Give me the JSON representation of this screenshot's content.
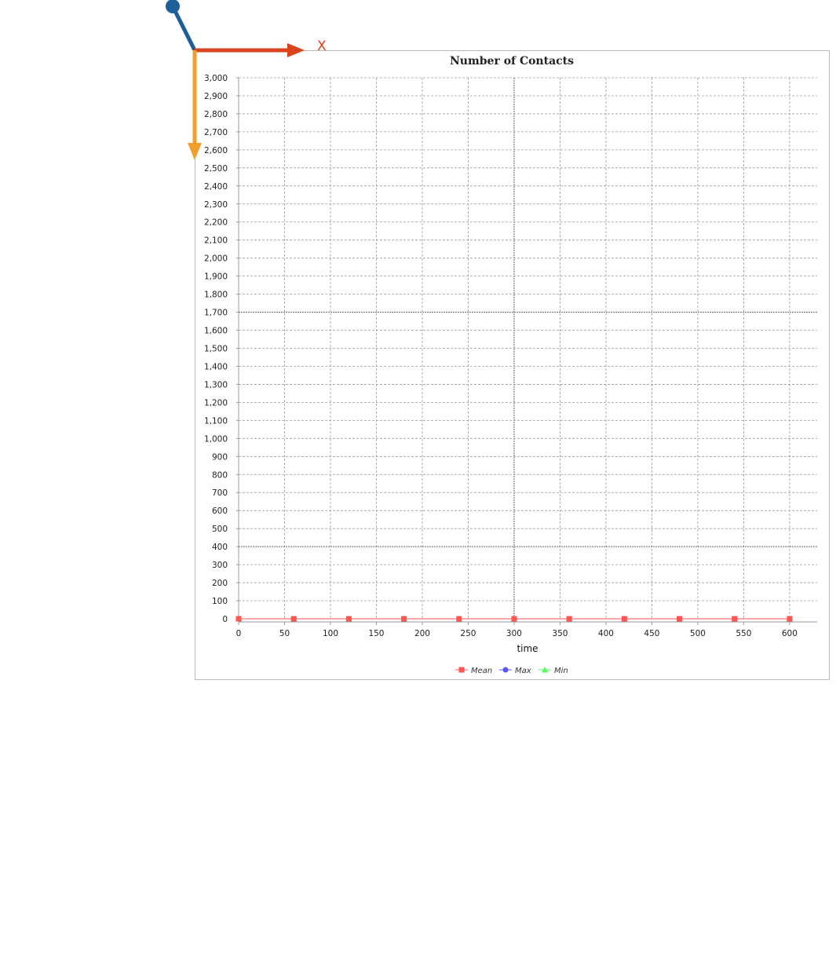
{
  "gizmo": {
    "x_label": "X",
    "x_color": "#d9441d",
    "y_color": "#f0a02a",
    "z_color": "#1f5f99"
  },
  "chart_data": {
    "type": "line",
    "title": "Number of Contacts",
    "xlabel": "time",
    "ylabel": "",
    "xlim": [
      0,
      630
    ],
    "ylim": [
      0,
      3000
    ],
    "x_ticks": [
      0,
      50,
      100,
      150,
      200,
      250,
      300,
      350,
      400,
      450,
      500,
      550,
      600
    ],
    "x_tick_labels": [
      "0",
      "50",
      "100",
      "150",
      "200",
      "250",
      "300",
      "350",
      "400",
      "450",
      "500",
      "550",
      "600"
    ],
    "y_ticks": [
      0,
      100,
      200,
      300,
      400,
      500,
      600,
      700,
      800,
      900,
      1000,
      1100,
      1200,
      1300,
      1400,
      1500,
      1600,
      1700,
      1800,
      1900,
      2000,
      2100,
      2200,
      2300,
      2400,
      2500,
      2600,
      2700,
      2800,
      2900,
      3000
    ],
    "y_tick_labels": [
      "0",
      "100",
      "200",
      "300",
      "400",
      "500",
      "600",
      "700",
      "800",
      "900",
      "1,000",
      "1,100",
      "1,200",
      "1,300",
      "1,400",
      "1,500",
      "1,600",
      "1,700",
      "1,800",
      "1,900",
      "2,000",
      "2,100",
      "2,200",
      "2,300",
      "2,400",
      "2,500",
      "2,600",
      "2,700",
      "2,800",
      "2,900",
      "3,000"
    ],
    "grid": true,
    "legend_position": "bottom",
    "series": [
      {
        "name": "Mean",
        "color": "#ff5555",
        "marker": "square",
        "x": [
          0,
          60,
          120,
          180,
          240,
          300,
          360,
          420,
          480,
          540,
          600
        ],
        "values": [
          0,
          0,
          0,
          0,
          0,
          0,
          0,
          0,
          0,
          0,
          0
        ]
      },
      {
        "name": "Max",
        "color": "#5555ff",
        "marker": "circle",
        "x": [
          0,
          60,
          120,
          180,
          240,
          300,
          360,
          420,
          480,
          540,
          600
        ],
        "values": [
          0,
          0,
          0,
          0,
          0,
          0,
          0,
          0,
          0,
          0,
          0
        ]
      },
      {
        "name": "Min",
        "color": "#55ff55",
        "marker": "triangle",
        "x": [
          0,
          60,
          120,
          180,
          240,
          300,
          360,
          420,
          480,
          540,
          600
        ],
        "values": [
          0,
          0,
          0,
          0,
          0,
          0,
          0,
          0,
          0,
          0,
          0
        ]
      }
    ]
  }
}
